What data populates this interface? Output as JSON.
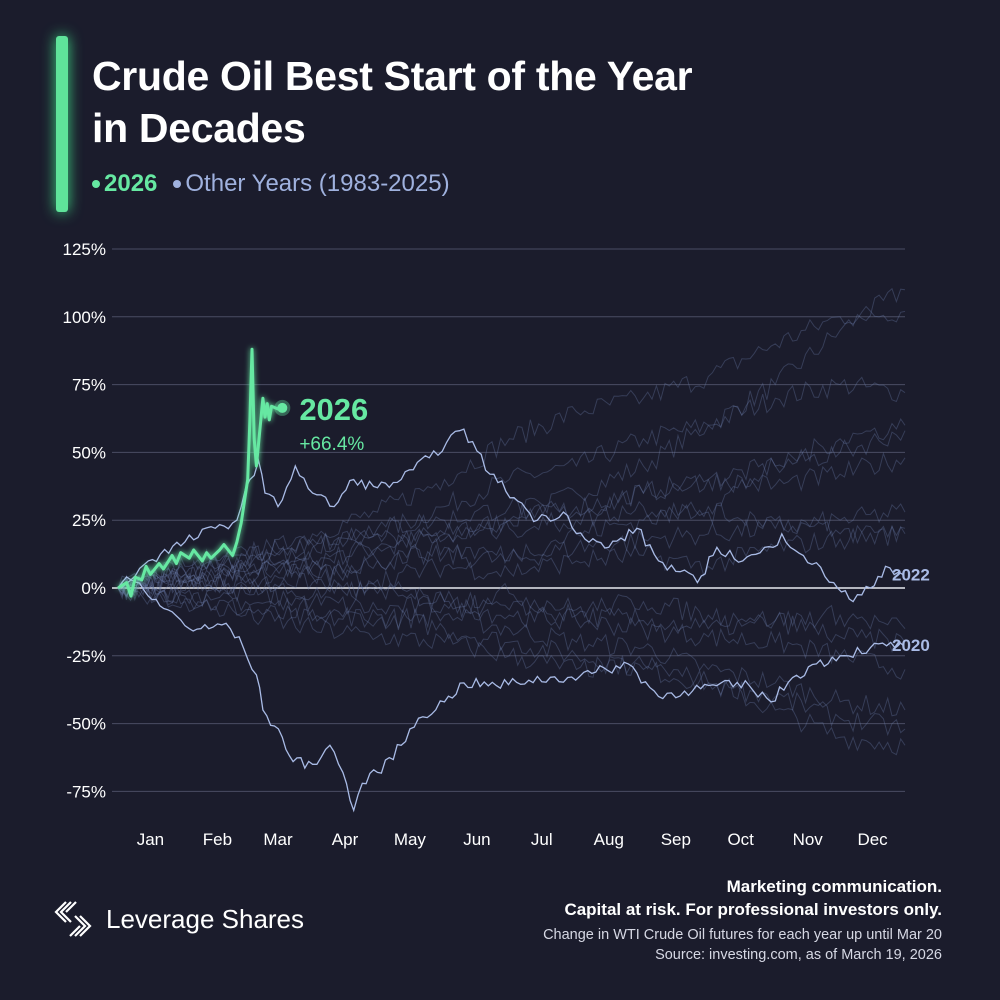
{
  "header": {
    "title_line1": "Crude Oil Best Start of the Year",
    "title_line2": "in Decades",
    "legend": [
      {
        "label": "2026",
        "color": "#66e8a2"
      },
      {
        "label": "Other Years (1983-2025)",
        "color": "#9fb1de"
      }
    ]
  },
  "chart_data": {
    "type": "line",
    "title": "Crude Oil Best Start of the Year in Decades",
    "xlabel": "",
    "ylabel": "",
    "x_ticks": [
      "Jan",
      "Feb",
      "Mar",
      "Apr",
      "May",
      "Jun",
      "Jul",
      "Aug",
      "Sep",
      "Oct",
      "Nov",
      "Dec"
    ],
    "y_ticks": [
      "125%",
      "100%",
      "75%",
      "50%",
      "25%",
      "0%",
      "-25%",
      "-50%",
      "-75%"
    ],
    "ylim": [
      -85,
      130
    ],
    "grid": "horizontal",
    "x_units": "date (MM-DD)",
    "highlight": {
      "name": "2026",
      "color": "#66e8a2",
      "label": "2026",
      "end_value_label": "+66.4%",
      "points": [
        [
          "01-01",
          0
        ],
        [
          "01-05",
          2
        ],
        [
          "01-07",
          -3
        ],
        [
          "01-09",
          4
        ],
        [
          "01-12",
          3
        ],
        [
          "01-14",
          8
        ],
        [
          "01-16",
          5
        ],
        [
          "01-20",
          9
        ],
        [
          "01-22",
          7
        ],
        [
          "01-26",
          12
        ],
        [
          "01-28",
          9
        ],
        [
          "01-30",
          13
        ],
        [
          "02-03",
          11
        ],
        [
          "02-05",
          14
        ],
        [
          "02-09",
          10
        ],
        [
          "02-11",
          13
        ],
        [
          "02-13",
          11
        ],
        [
          "02-17",
          14
        ],
        [
          "02-19",
          16
        ],
        [
          "02-23",
          12
        ],
        [
          "02-25",
          17
        ],
        [
          "02-27",
          24
        ],
        [
          "03-02",
          40
        ],
        [
          "03-03",
          62
        ],
        [
          "03-04",
          88
        ],
        [
          "03-05",
          55
        ],
        [
          "03-06",
          45
        ],
        [
          "03-09",
          70
        ],
        [
          "03-10",
          63
        ],
        [
          "03-11",
          68
        ],
        [
          "03-12",
          62
        ],
        [
          "03-13",
          67
        ],
        [
          "03-16",
          66
        ],
        [
          "03-18",
          66.4
        ]
      ]
    },
    "labeled_series": [
      {
        "name": "2022",
        "label": "2022",
        "color": "#a9bbe6",
        "points": [
          [
            "01-01",
            0
          ],
          [
            "01-15",
            10
          ],
          [
            "02-01",
            17
          ],
          [
            "02-15",
            22
          ],
          [
            "02-25",
            25
          ],
          [
            "03-03",
            40
          ],
          [
            "03-07",
            47
          ],
          [
            "03-10",
            35
          ],
          [
            "03-16",
            30
          ],
          [
            "03-24",
            45
          ],
          [
            "04-01",
            35
          ],
          [
            "04-11",
            30
          ],
          [
            "04-20",
            40
          ],
          [
            "05-01",
            37
          ],
          [
            "05-12",
            40
          ],
          [
            "05-25",
            48
          ],
          [
            "06-08",
            58
          ],
          [
            "06-14",
            54
          ],
          [
            "06-22",
            42
          ],
          [
            "07-05",
            32
          ],
          [
            "07-14",
            25
          ],
          [
            "07-26",
            28
          ],
          [
            "08-05",
            18
          ],
          [
            "08-16",
            15
          ],
          [
            "08-29",
            22
          ],
          [
            "09-08",
            10
          ],
          [
            "09-26",
            2
          ],
          [
            "10-05",
            15
          ],
          [
            "10-17",
            10
          ],
          [
            "10-31",
            15
          ],
          [
            "11-04",
            20
          ],
          [
            "11-14",
            12
          ],
          [
            "11-28",
            2
          ],
          [
            "12-07",
            -5
          ],
          [
            "12-15",
            0
          ],
          [
            "12-22",
            8
          ],
          [
            "12-30",
            5
          ]
        ]
      },
      {
        "name": "2020",
        "label": "2020",
        "color": "#a9bbe6",
        "points": [
          [
            "01-01",
            0
          ],
          [
            "01-07",
            3
          ],
          [
            "01-15",
            -3
          ],
          [
            "01-24",
            -8
          ],
          [
            "02-03",
            -15
          ],
          [
            "02-12",
            -15
          ],
          [
            "02-20",
            -13
          ],
          [
            "02-28",
            -22
          ],
          [
            "03-06",
            -32
          ],
          [
            "03-09",
            -45
          ],
          [
            "03-18",
            -55
          ],
          [
            "03-23",
            -64
          ],
          [
            "04-01",
            -65
          ],
          [
            "04-09",
            -58
          ],
          [
            "04-15",
            -68
          ],
          [
            "04-20",
            -82
          ],
          [
            "04-24",
            -72
          ],
          [
            "05-01",
            -68
          ],
          [
            "05-12",
            -58
          ],
          [
            "05-20",
            -48
          ],
          [
            "06-01",
            -42
          ],
          [
            "06-10",
            -35
          ],
          [
            "06-25",
            -36
          ],
          [
            "07-10",
            -34
          ],
          [
            "07-28",
            -33
          ],
          [
            "08-10",
            -31
          ],
          [
            "08-25",
            -28
          ],
          [
            "09-08",
            -40
          ],
          [
            "09-20",
            -38
          ],
          [
            "10-05",
            -36
          ],
          [
            "10-20",
            -36
          ],
          [
            "10-30",
            -42
          ],
          [
            "11-09",
            -33
          ],
          [
            "11-20",
            -28
          ],
          [
            "12-01",
            -25
          ],
          [
            "12-15",
            -22
          ],
          [
            "12-30",
            -21
          ]
        ]
      }
    ],
    "other_years": [
      [
        0,
        5,
        12,
        10,
        15,
        20,
        25,
        35,
        45,
        60,
        75,
        95,
        110
      ],
      [
        0,
        3,
        8,
        15,
        20,
        30,
        40,
        45,
        55,
        60,
        70,
        75,
        72
      ],
      [
        0,
        6,
        10,
        20,
        28,
        40,
        55,
        65,
        70,
        78,
        90,
        100,
        102
      ],
      [
        0,
        2,
        5,
        10,
        15,
        20,
        25,
        30,
        35,
        40,
        45,
        50,
        58
      ],
      [
        0,
        -4,
        -8,
        -12,
        -10,
        -15,
        -20,
        -25,
        -30,
        -35,
        -45,
        -55,
        -58
      ],
      [
        0,
        -2,
        -5,
        -8,
        -12,
        -10,
        -15,
        -20,
        -22,
        -30,
        -35,
        -42,
        -45
      ],
      [
        0,
        4,
        6,
        8,
        10,
        12,
        10,
        15,
        18,
        20,
        22,
        25,
        28
      ],
      [
        0,
        -3,
        -2,
        -5,
        -8,
        -6,
        -10,
        -12,
        -15,
        -18,
        -20,
        -25,
        -30
      ],
      [
        0,
        8,
        14,
        18,
        22,
        25,
        30,
        28,
        35,
        40,
        38,
        42,
        48
      ],
      [
        0,
        -5,
        -10,
        -15,
        -18,
        -20,
        -25,
        -30,
        -28,
        -35,
        -40,
        -48,
        -52
      ],
      [
        0,
        2,
        1,
        5,
        3,
        8,
        6,
        10,
        12,
        8,
        15,
        18,
        20
      ],
      [
        0,
        -1,
        2,
        -3,
        0,
        -5,
        -2,
        -8,
        -5,
        -10,
        -12,
        -10,
        -15
      ],
      [
        0,
        5,
        8,
        4,
        10,
        15,
        12,
        20,
        25,
        30,
        45,
        55,
        60
      ],
      [
        0,
        3,
        5,
        2,
        -2,
        -5,
        -8,
        -10,
        -12,
        -15,
        -12,
        -18,
        -20
      ],
      [
        0,
        6,
        12,
        16,
        20,
        18,
        22,
        25,
        30,
        28,
        25,
        20,
        22
      ]
    ]
  },
  "footer": {
    "brand": "Leverage Shares",
    "disclaimer_line1": "Marketing communication.",
    "disclaimer_line2": "Capital at risk. For professional investors only.",
    "note": "Change in WTI Crude Oil futures for each year up until Mar 20",
    "source": "Source: investing.com, as of March 19, 2026"
  }
}
